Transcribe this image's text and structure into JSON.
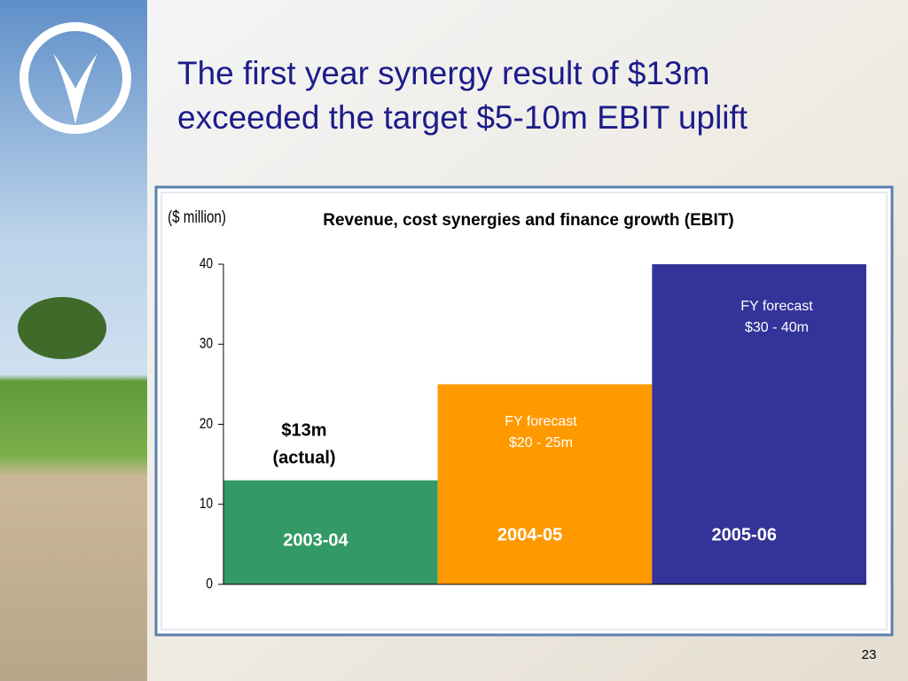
{
  "slide_title": [
    "The first year synergy result of $13m",
    "exceeded the target $5-10m EBIT uplift"
  ],
  "page_number": "23",
  "chart_data": {
    "type": "bar",
    "title": "Revenue, cost synergies and finance growth (EBIT)",
    "y_label": "($ million)",
    "categories": [
      "2003-04",
      "2004-05",
      "2005-06"
    ],
    "values": [
      13,
      25,
      40
    ],
    "colors": [
      "#339966",
      "#ff9900",
      "#333399"
    ],
    "ylim": [
      0,
      40
    ],
    "yticks": [
      0,
      10,
      20,
      30,
      40
    ],
    "annotations": [
      "$13m",
      "(actual)",
      "FY forecast",
      "$20 - 25m",
      "FY forecast",
      "$30 - 40m"
    ]
  }
}
